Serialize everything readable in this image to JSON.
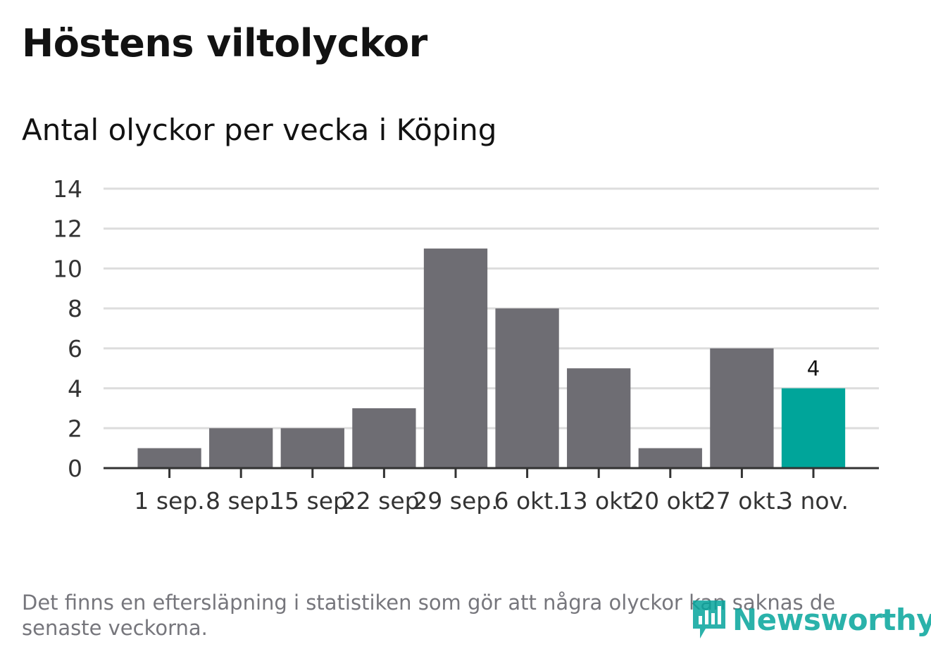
{
  "title": "Höstens viltolyckor",
  "subtitle": "Antal olyckor per vecka i Köping",
  "footnote": "Det finns en eftersläpning i statistiken som gör att några olyckor kan saknas de senaste veckorna.",
  "logo": {
    "text": "Newsworthy",
    "icon": "bar-chart-icon"
  },
  "colors": {
    "bar": "#6e6d73",
    "highlight": "#00a59a",
    "grid": "#dddddd",
    "axis": "#333333"
  },
  "chart_data": {
    "type": "bar",
    "categories": [
      "1 sep.",
      "8 sep.",
      "15 sep.",
      "22 sep.",
      "29 sep.",
      "6 okt.",
      "13 okt.",
      "20 okt.",
      "27 okt.",
      "3 nov."
    ],
    "values": [
      1,
      2,
      2,
      3,
      11,
      8,
      5,
      1,
      6,
      4
    ],
    "highlight_index": 9,
    "data_labels": [
      {
        "index": 9,
        "text": "4"
      }
    ],
    "ylim": [
      0,
      14
    ],
    "yticks": [
      0,
      2,
      4,
      6,
      8,
      10,
      12,
      14
    ],
    "xlabel": "",
    "ylabel": "",
    "grid": true,
    "legend": "none"
  }
}
